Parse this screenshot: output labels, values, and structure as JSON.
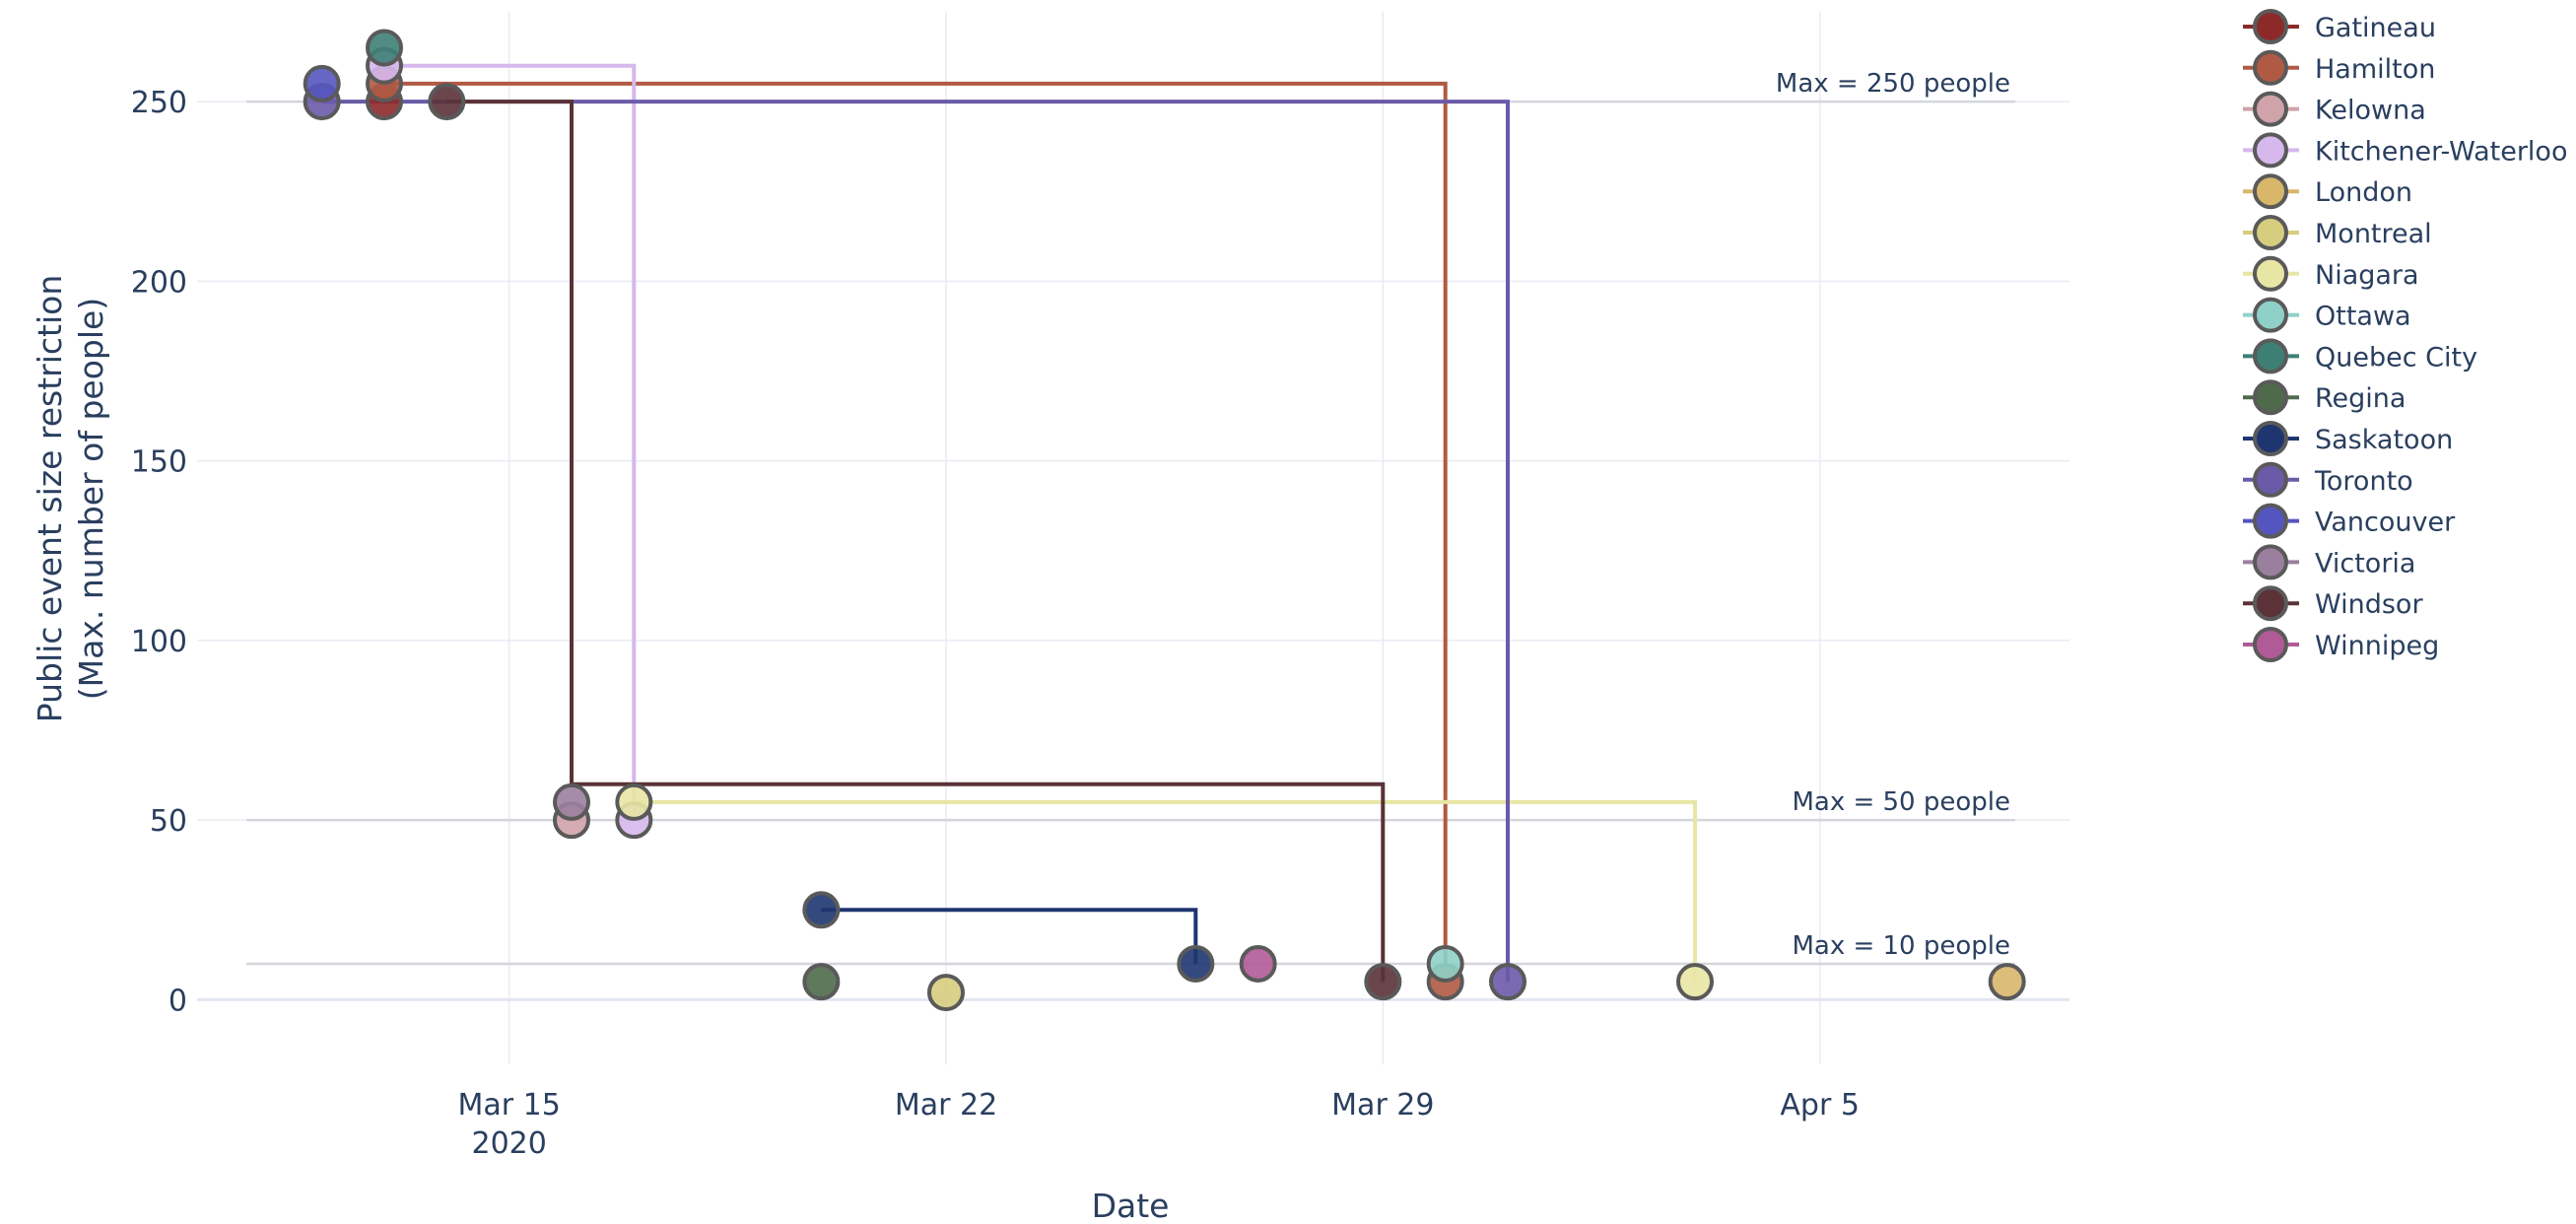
{
  "chart_data": {
    "type": "line",
    "title": "",
    "xlabel": "Date",
    "ylabel_lines": [
      "Public event size restriction",
      "(Max. number of people)"
    ],
    "x_ticks": [
      {
        "date": "2020-03-15",
        "label": "Mar 15",
        "sublabel": "2020"
      },
      {
        "date": "2020-03-22",
        "label": "Mar 22",
        "sublabel": ""
      },
      {
        "date": "2020-03-29",
        "label": "Mar 29",
        "sublabel": ""
      },
      {
        "date": "2020-04-05",
        "label": "Apr 5",
        "sublabel": ""
      }
    ],
    "y_ticks": [
      0,
      50,
      100,
      150,
      200,
      250
    ],
    "xlim": [
      "2020-03-10",
      "2020-04-09"
    ],
    "ylim": [
      -18,
      275
    ],
    "grid": true,
    "legend_position": "right",
    "reference_lines": [
      {
        "y": 250,
        "label": "Max = 250 people"
      },
      {
        "y": 50,
        "label": "Max = 50 people"
      },
      {
        "y": 10,
        "label": "Max = 10 people"
      }
    ],
    "series": [
      {
        "name": "Gatineau",
        "color": "#8c2a2a",
        "points": [
          {
            "x": "2020-03-13",
            "y": 250
          }
        ]
      },
      {
        "name": "Hamilton",
        "color": "#b05a44",
        "points": [
          {
            "x": "2020-03-13",
            "y": 255
          },
          {
            "x": "2020-03-30",
            "y": 255
          },
          {
            "x": "2020-03-30",
            "y": 5
          }
        ]
      },
      {
        "name": "Kelowna",
        "color": "#cfa3a9",
        "points": [
          {
            "x": "2020-03-16",
            "y": 50
          }
        ]
      },
      {
        "name": "Kitchener-Waterloo",
        "color": "#d6b8ec",
        "points": [
          {
            "x": "2020-03-13",
            "y": 260
          },
          {
            "x": "2020-03-17",
            "y": 260
          },
          {
            "x": "2020-03-17",
            "y": 50
          }
        ]
      },
      {
        "name": "London",
        "color": "#d8b66a",
        "points": [
          {
            "x": "2020-04-08",
            "y": 5
          }
        ]
      },
      {
        "name": "Montreal",
        "color": "#d6cd7e",
        "points": [
          {
            "x": "2020-03-22",
            "y": 2
          }
        ]
      },
      {
        "name": "Niagara",
        "color": "#e8e6a4",
        "points": [
          {
            "x": "2020-03-17",
            "y": 55
          },
          {
            "x": "2020-04-03",
            "y": 55
          },
          {
            "x": "2020-04-03",
            "y": 5
          }
        ]
      },
      {
        "name": "Ottawa",
        "color": "#8fd1c8",
        "points": [
          {
            "x": "2020-03-30",
            "y": 10
          }
        ]
      },
      {
        "name": "Quebec City",
        "color": "#3d7f75",
        "points": [
          {
            "x": "2020-03-13",
            "y": 265
          }
        ]
      },
      {
        "name": "Regina",
        "color": "#4e6a4b",
        "points": [
          {
            "x": "2020-03-20",
            "y": 5
          }
        ]
      },
      {
        "name": "Saskatoon",
        "color": "#1e3570",
        "points": [
          {
            "x": "2020-03-20",
            "y": 25
          },
          {
            "x": "2020-03-26",
            "y": 25
          },
          {
            "x": "2020-03-26",
            "y": 10
          }
        ]
      },
      {
        "name": "Toronto",
        "color": "#6a5aa8",
        "points": [
          {
            "x": "2020-03-12",
            "y": 250
          },
          {
            "x": "2020-03-31",
            "y": 250
          },
          {
            "x": "2020-03-31",
            "y": 5
          }
        ]
      },
      {
        "name": "Vancouver",
        "color": "#5555bf",
        "points": [
          {
            "x": "2020-03-12",
            "y": 255
          }
        ]
      },
      {
        "name": "Victoria",
        "color": "#9b7f9e",
        "points": [
          {
            "x": "2020-03-16",
            "y": 55
          }
        ]
      },
      {
        "name": "Windsor",
        "color": "#5a3238",
        "points": [
          {
            "x": "2020-03-14",
            "y": 250
          },
          {
            "x": "2020-03-16",
            "y": 250
          },
          {
            "x": "2020-03-16",
            "y": 60
          },
          {
            "x": "2020-03-29",
            "y": 60
          },
          {
            "x": "2020-03-29",
            "y": 5
          }
        ]
      },
      {
        "name": "Winnipeg",
        "color": "#b05a97",
        "points": [
          {
            "x": "2020-03-27",
            "y": 10
          }
        ]
      }
    ]
  }
}
